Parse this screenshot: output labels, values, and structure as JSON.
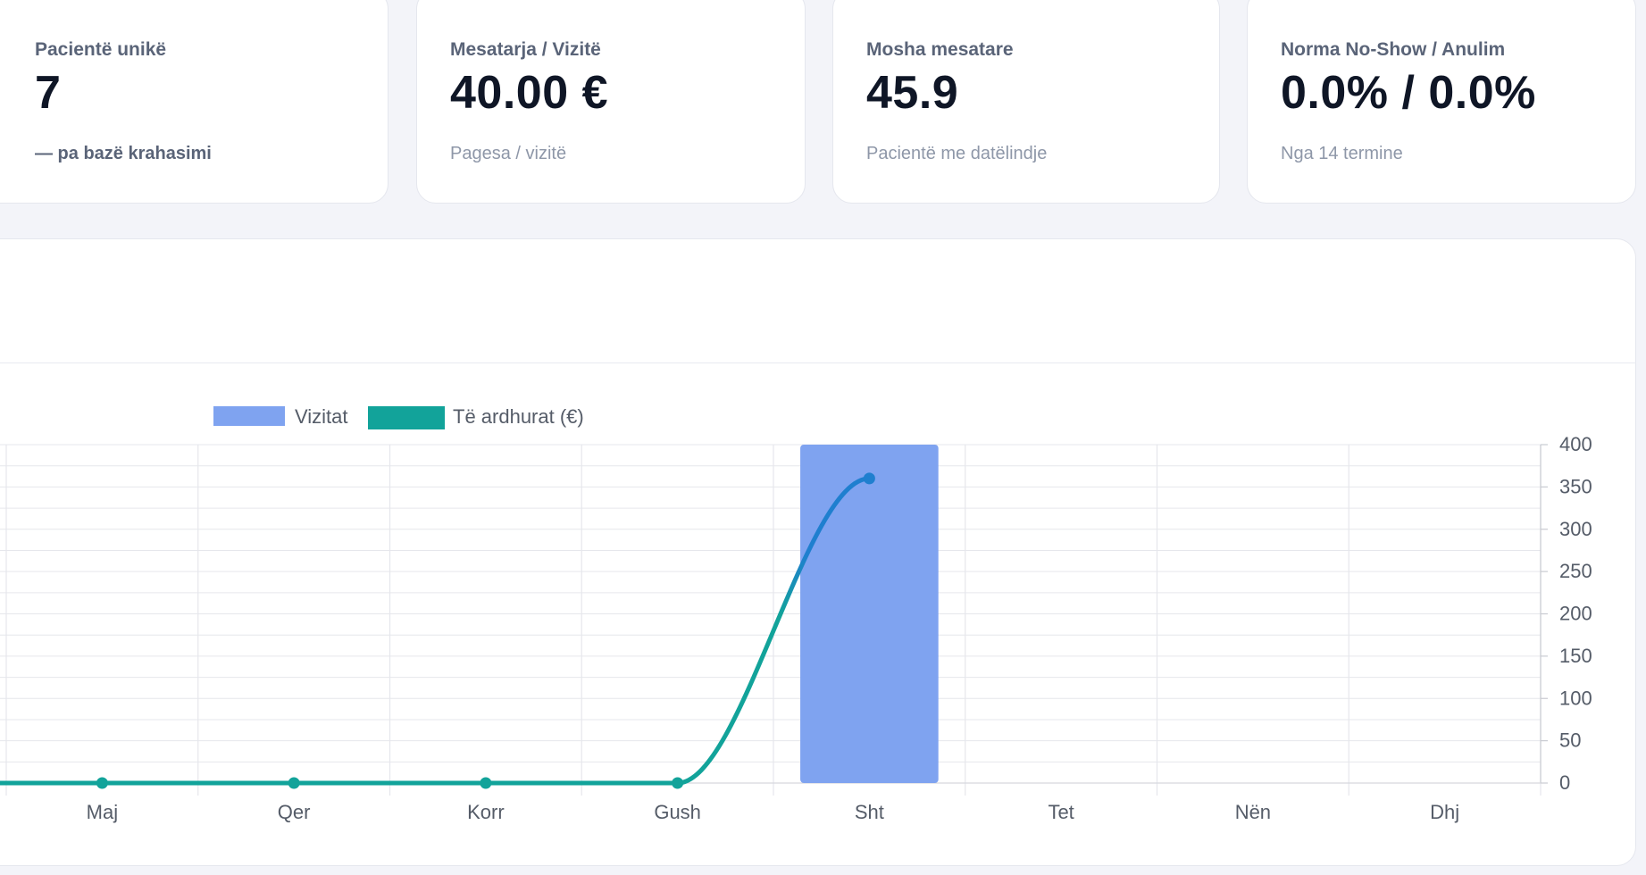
{
  "kpis": [
    {
      "label": "Pacientë unikë",
      "value": "7",
      "sub": "— pa bazë krahasimi",
      "sub_style": "strong"
    },
    {
      "label": "Mesatarja / Vizitë",
      "value": "40.00 €",
      "sub": "Pagesa / vizitë",
      "sub_style": "muted"
    },
    {
      "label": "Mosha mesatare",
      "value": "45.9",
      "sub": "Pacientë me datëlindje",
      "sub_style": "muted"
    },
    {
      "label": "Norma No-Show / Anulim",
      "value": "0.0% / 0.0%",
      "sub": "Nga 14 termine",
      "sub_style": "muted"
    }
  ],
  "colors": {
    "bar": "#7fa3f0",
    "line": "#12a39a",
    "line_highlight": "#1f7fcf",
    "grid": "#e6e7ec",
    "text": "#555c68"
  },
  "chart_data": {
    "type": "bar",
    "categories": [
      "Maj",
      "Qer",
      "Korr",
      "Gush",
      "Sht",
      "Tet",
      "Nën",
      "Dhj"
    ],
    "series": [
      {
        "name": "Vizitat",
        "type": "bar",
        "values": [
          0,
          0,
          0,
          0,
          400,
          0,
          0,
          0
        ]
      },
      {
        "name": "Të ardhurat (€)",
        "type": "line",
        "values": [
          0,
          0,
          0,
          0,
          360,
          null,
          null,
          null
        ]
      }
    ],
    "y_ticks": [
      "0",
      "50",
      "100",
      "150",
      "200",
      "250",
      "300",
      "350",
      "400"
    ],
    "ylim": [
      0,
      400
    ],
    "y_axis_side": "right",
    "grid": true,
    "legend_position": "top-left"
  }
}
